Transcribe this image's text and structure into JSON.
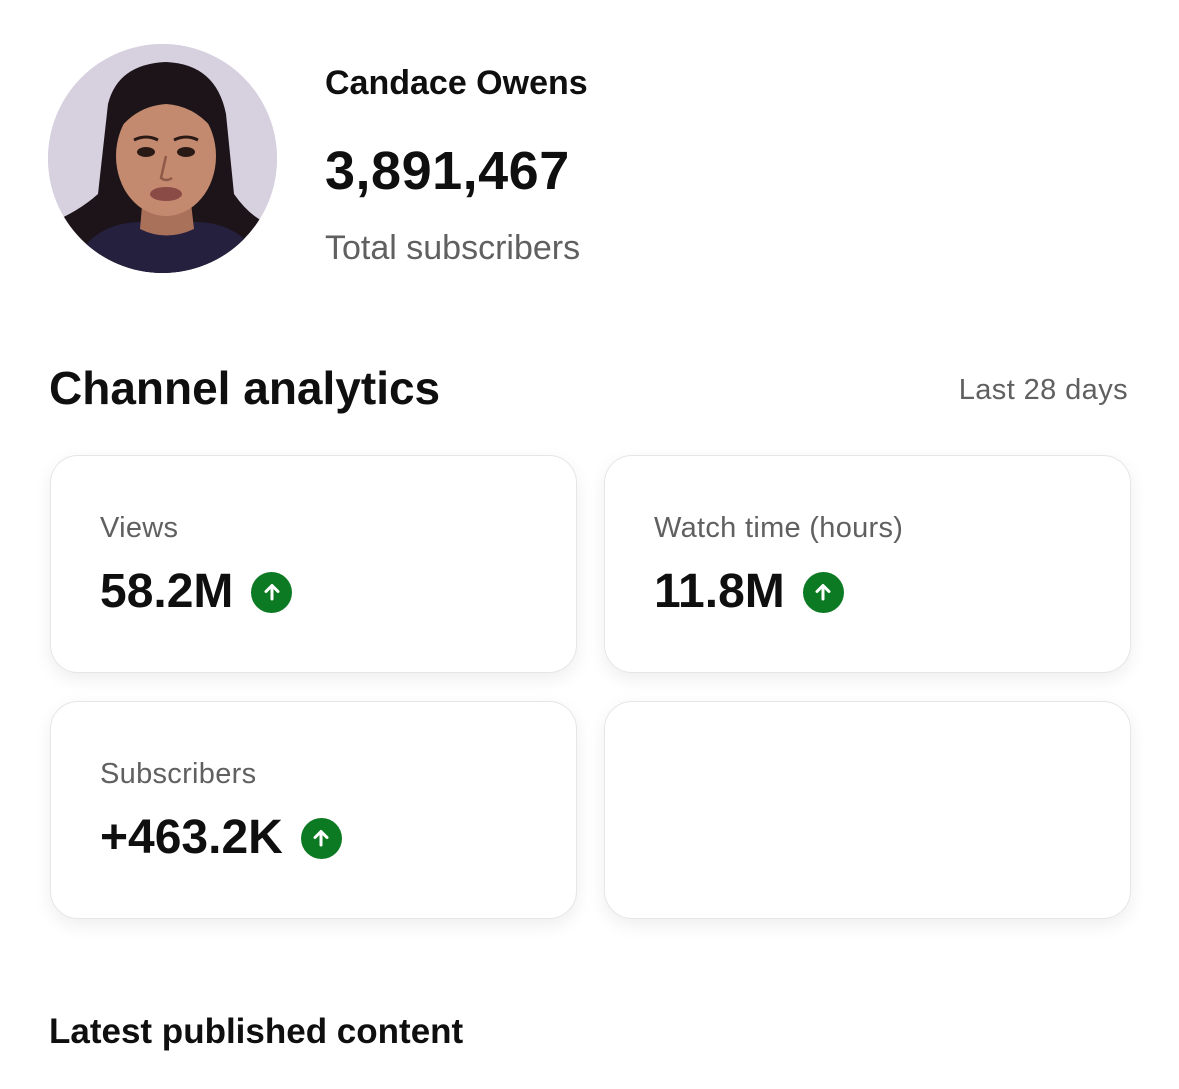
{
  "channel": {
    "name": "Candace Owens",
    "subscriber_count": "3,891,467",
    "subscriber_label": "Total subscribers",
    "avatar_icon": "channel-avatar"
  },
  "analytics": {
    "title": "Channel analytics",
    "period": "Last 28 days",
    "cards": [
      {
        "label": "Views",
        "value": "58.2M",
        "trend": "up"
      },
      {
        "label": "Watch time (hours)",
        "value": "11.8M",
        "trend": "up"
      },
      {
        "label": "Subscribers",
        "value": "+463.2K",
        "trend": "up"
      },
      {
        "label": "",
        "value": "",
        "trend": ""
      }
    ]
  },
  "latest": {
    "title": "Latest published content"
  },
  "colors": {
    "trend_up": "#0c7a23",
    "text_primary": "#0f0f0f",
    "text_secondary": "#606060"
  }
}
